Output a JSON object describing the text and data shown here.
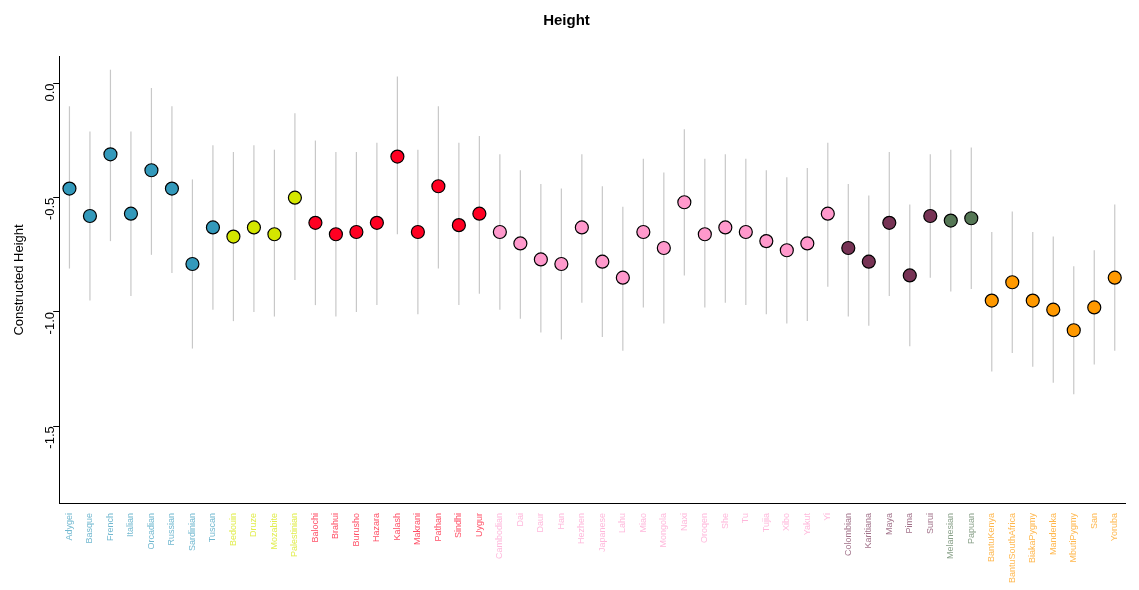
{
  "chart_data": {
    "type": "scatter",
    "title": "Height",
    "ylabel": "Constructed Height",
    "categories": [
      "Adygei",
      "Basque",
      "French",
      "Italian",
      "Orcadian",
      "Russian",
      "Sardinian",
      "Tuscan",
      "Bedouin",
      "Druze",
      "Mozabite",
      "Palestinian",
      "Balochi",
      "Brahui",
      "Burusho",
      "Hazara",
      "Kalash",
      "Makrani",
      "Pathan",
      "Sindhi",
      "Uygur",
      "Cambodian",
      "Dai",
      "Daur",
      "Han",
      "Hezhen",
      "Japanese",
      "Lahu",
      "Miao",
      "Mongola",
      "Naxi",
      "Oroqen",
      "She",
      "Tu",
      "Tujia",
      "Xibo",
      "Yakut",
      "Yi",
      "Colombian",
      "Karitiana",
      "Maya",
      "Pima",
      "Surui",
      "Melanesian",
      "Papuan",
      "BantuKenya",
      "BantuSouthAfrica",
      "BiakaPygmy",
      "Mandenka",
      "MbutiPygmy",
      "San",
      "Yoruba"
    ],
    "values": [
      -0.46,
      -0.58,
      -0.31,
      -0.57,
      -0.38,
      -0.46,
      -0.79,
      -0.63,
      -0.67,
      -0.63,
      -0.66,
      -0.5,
      -0.61,
      -0.66,
      -0.65,
      -0.61,
      -0.32,
      -0.65,
      -0.45,
      -0.62,
      -0.57,
      -0.65,
      -0.7,
      -0.77,
      -0.79,
      -0.63,
      -0.78,
      -0.85,
      -0.65,
      -0.72,
      -0.52,
      -0.66,
      -0.63,
      -0.65,
      -0.69,
      -0.73,
      -0.7,
      -0.57,
      -0.72,
      -0.78,
      -0.61,
      -0.84,
      -0.58,
      -0.6,
      -0.59,
      -0.95,
      -0.87,
      -0.95,
      -0.99,
      -1.08,
      -0.98,
      -0.85
    ],
    "errors": [
      [
        -0.81,
        -0.1
      ],
      [
        -0.95,
        -0.21
      ],
      [
        -0.69,
        0.06
      ],
      [
        -0.93,
        -0.21
      ],
      [
        -0.75,
        -0.02
      ],
      [
        -0.83,
        -0.1
      ],
      [
        -1.16,
        -0.42
      ],
      [
        -0.99,
        -0.27
      ],
      [
        -1.04,
        -0.3
      ],
      [
        -1.0,
        -0.27
      ],
      [
        -1.02,
        -0.29
      ],
      [
        -0.86,
        -0.13
      ],
      [
        -0.97,
        -0.25
      ],
      [
        -1.02,
        -0.3
      ],
      [
        -1.0,
        -0.3
      ],
      [
        -0.97,
        -0.26
      ],
      [
        -0.66,
        0.03
      ],
      [
        -1.01,
        -0.29
      ],
      [
        -0.81,
        -0.1
      ],
      [
        -0.97,
        -0.26
      ],
      [
        -0.92,
        -0.23
      ],
      [
        -0.99,
        -0.31
      ],
      [
        -1.03,
        -0.38
      ],
      [
        -1.09,
        -0.44
      ],
      [
        -1.12,
        -0.46
      ],
      [
        -0.96,
        -0.31
      ],
      [
        -1.11,
        -0.45
      ],
      [
        -1.17,
        -0.54
      ],
      [
        -0.98,
        -0.33
      ],
      [
        -1.05,
        -0.39
      ],
      [
        -0.84,
        -0.2
      ],
      [
        -0.98,
        -0.33
      ],
      [
        -0.96,
        -0.31
      ],
      [
        -0.97,
        -0.33
      ],
      [
        -1.01,
        -0.38
      ],
      [
        -1.05,
        -0.41
      ],
      [
        -1.04,
        -0.37
      ],
      [
        -0.89,
        -0.26
      ],
      [
        -1.02,
        -0.44
      ],
      [
        -1.06,
        -0.49
      ],
      [
        -0.93,
        -0.3
      ],
      [
        -1.15,
        -0.53
      ],
      [
        -0.85,
        -0.31
      ],
      [
        -0.91,
        -0.29
      ],
      [
        -0.9,
        -0.28
      ],
      [
        -1.26,
        -0.65
      ],
      [
        -1.18,
        -0.56
      ],
      [
        -1.24,
        -0.65
      ],
      [
        -1.31,
        -0.67
      ],
      [
        -1.36,
        -0.8
      ],
      [
        -1.23,
        -0.73
      ],
      [
        -1.17,
        -0.53
      ]
    ],
    "colors": [
      "#3399bb",
      "#3399bb",
      "#3399bb",
      "#3399bb",
      "#3399bb",
      "#3399bb",
      "#3399bb",
      "#3399bb",
      "#d4e600",
      "#d4e600",
      "#d4e600",
      "#d4e600",
      "#ff0022",
      "#ff0022",
      "#ff0022",
      "#ff0022",
      "#ff0022",
      "#ff0022",
      "#ff0022",
      "#ff0022",
      "#ff0022",
      "#ff99cc",
      "#ff99cc",
      "#ff99cc",
      "#ff99cc",
      "#ff99cc",
      "#ff99cc",
      "#ff99cc",
      "#ff99cc",
      "#ff99cc",
      "#ff99cc",
      "#ff99cc",
      "#ff99cc",
      "#ff99cc",
      "#ff99cc",
      "#ff99cc",
      "#ff99cc",
      "#ff99cc",
      "#773355",
      "#773355",
      "#773355",
      "#773355",
      "#773355",
      "#557755",
      "#557755",
      "#ff9900",
      "#ff9900",
      "#ff9900",
      "#ff9900",
      "#ff9900",
      "#ff9900",
      "#ff9900"
    ],
    "ylim": [
      -1.84,
      0.12
    ],
    "yticks": [
      {
        "value": 0,
        "label": "0.0"
      },
      -0.5,
      {
        "value": -1,
        "label": "-1.0"
      },
      -1.5
    ],
    "marker": "circle",
    "grid": false,
    "legend": false
  }
}
